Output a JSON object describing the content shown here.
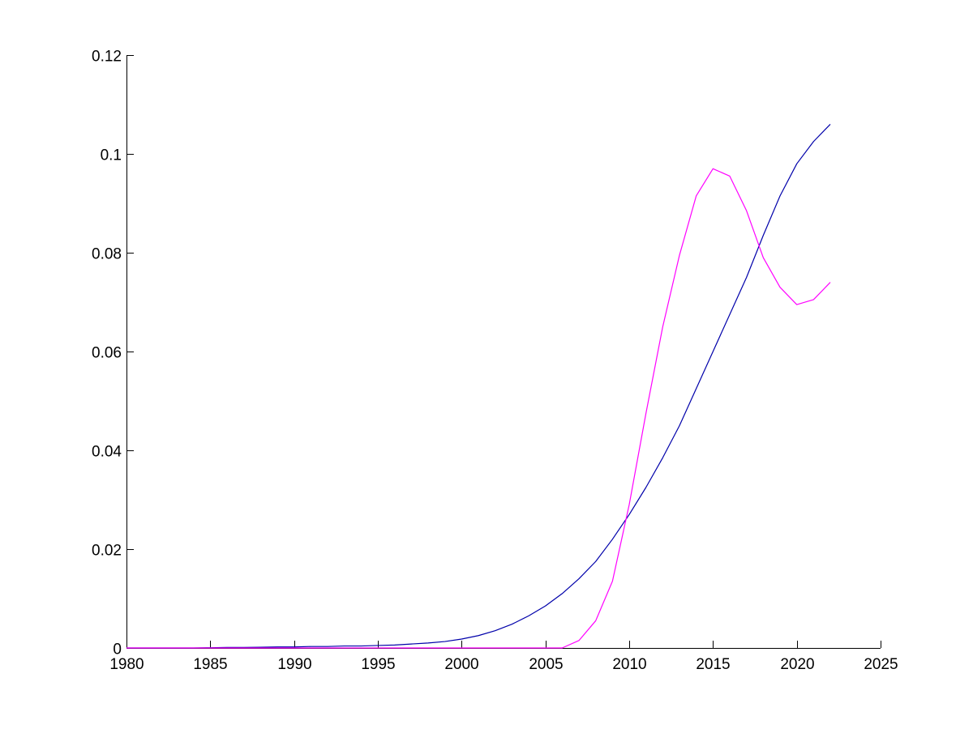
{
  "chart_data": {
    "type": "line",
    "title": "",
    "xlabel": "",
    "ylabel": "",
    "xlim": [
      1980,
      2025
    ],
    "ylim": [
      0,
      0.12
    ],
    "grid": false,
    "legend": "none",
    "x_ticks": [
      "1980",
      "1985",
      "1990",
      "1995",
      "2000",
      "2005",
      "2010",
      "2015",
      "2020",
      "2025"
    ],
    "y_ticks": [
      "0",
      "0.02",
      "0.04",
      "0.06",
      "0.08",
      "0.1",
      "0.12"
    ],
    "x": [
      1980,
      1981,
      1982,
      1983,
      1984,
      1985,
      1986,
      1987,
      1988,
      1989,
      1990,
      1991,
      1992,
      1993,
      1994,
      1995,
      1996,
      1997,
      1998,
      1999,
      2000,
      2001,
      2002,
      2003,
      2004,
      2005,
      2006,
      2007,
      2008,
      2009,
      2010,
      2011,
      2012,
      2013,
      2014,
      2015,
      2016,
      2017,
      2018,
      2019,
      2020,
      2021,
      2022
    ],
    "series": [
      {
        "color": "#0000aa",
        "values": [
          0,
          0,
          0,
          0,
          0,
          5e-05,
          0.0001,
          0.0001,
          0.00015,
          0.0002,
          0.0002,
          0.0003,
          0.0003,
          0.0004,
          0.0004,
          0.0005,
          0.0006,
          0.0008,
          0.001,
          0.0013,
          0.0018,
          0.0025,
          0.0035,
          0.0048,
          0.0065,
          0.0085,
          0.011,
          0.014,
          0.0175,
          0.022,
          0.027,
          0.0325,
          0.0385,
          0.045,
          0.0525,
          0.06,
          0.0675,
          0.075,
          0.0835,
          0.0915,
          0.098,
          0.1025,
          0.106
        ]
      },
      {
        "color": "#ff00ff",
        "values": [
          0,
          0,
          0,
          0,
          0,
          0,
          0,
          0,
          0,
          0,
          0,
          0,
          0,
          0,
          0,
          0,
          0,
          0,
          0,
          0,
          0,
          0,
          0,
          0,
          0,
          0,
          0,
          0.0015,
          0.0055,
          0.0135,
          0.029,
          0.0475,
          0.065,
          0.0795,
          0.0915,
          0.097,
          0.0955,
          0.0885,
          0.079,
          0.073,
          0.0695,
          0.0705,
          0.074
        ]
      }
    ]
  }
}
